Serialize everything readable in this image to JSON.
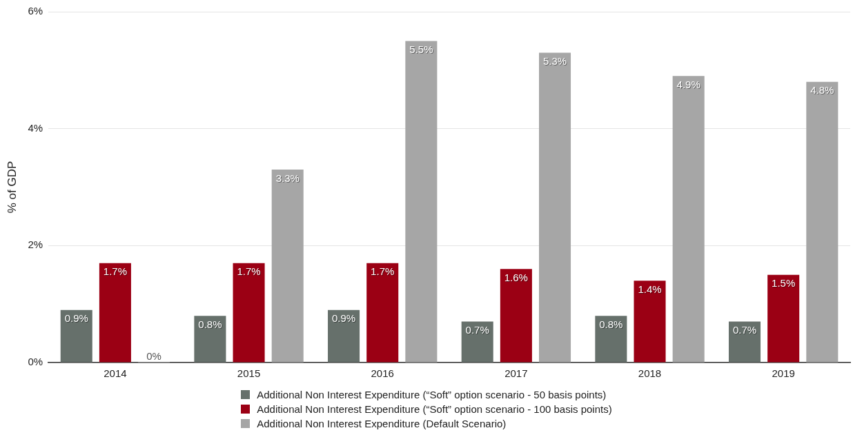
{
  "chart_data": {
    "type": "bar",
    "ylabel": "% of GDP",
    "categories": [
      "2014",
      "2015",
      "2016",
      "2017",
      "2018",
      "2019"
    ],
    "series": [
      {
        "name": "Additional Non Interest Expenditure (“Soft” option scenario - 50 basis points)",
        "color": "#66706b",
        "values": [
          0.9,
          0.8,
          0.9,
          0.7,
          0.8,
          0.7
        ],
        "value_labels": [
          "0.9%",
          "0.8%",
          "0.9%",
          "0.7%",
          "0.8%",
          "0.7%"
        ]
      },
      {
        "name": "Additional Non Interest Expenditure (“Soft” option scenario - 100 basis points)",
        "color": "#9b0014",
        "values": [
          1.7,
          1.7,
          1.7,
          1.6,
          1.4,
          1.5
        ],
        "value_labels": [
          "1.7%",
          "1.7%",
          "1.7%",
          "1.6%",
          "1.4%",
          "1.5%"
        ]
      },
      {
        "name": "Additional Non Interest Expenditure (Default Scenario)",
        "color": "#a6a6a6",
        "values": [
          0,
          3.3,
          5.5,
          5.3,
          4.9,
          4.8
        ],
        "value_labels": [
          "0%",
          "3.3%",
          "5.5%",
          "5.3%",
          "4.9%",
          "4.8%"
        ]
      }
    ],
    "ylim": [
      0,
      6
    ],
    "yticks": [
      {
        "value": 0,
        "label": "0%"
      },
      {
        "value": 2,
        "label": "2%"
      },
      {
        "value": 4,
        "label": "4%"
      },
      {
        "value": 6,
        "label": "6%"
      }
    ],
    "grid": "y",
    "legend": "bottom"
  }
}
